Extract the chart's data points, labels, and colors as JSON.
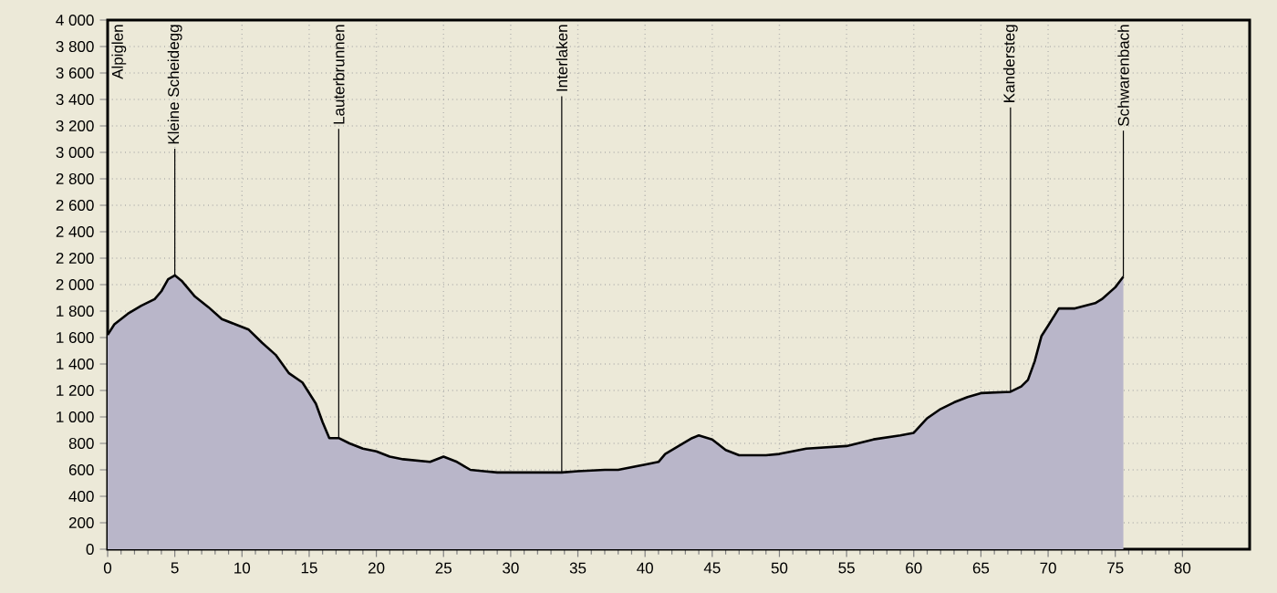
{
  "chart_data": {
    "type": "area",
    "color": "#b9b6c9",
    "x": [
      0,
      0.5,
      1.5,
      2.5,
      3.5,
      4,
      4.5,
      5,
      5.5,
      6.5,
      7.5,
      8.5,
      9.5,
      10.5,
      11.5,
      12.5,
      13.5,
      14.5,
      15.5,
      16,
      16.5,
      17.2,
      18,
      19,
      20,
      21,
      22,
      24,
      25,
      26,
      27,
      28,
      29,
      33.8,
      35,
      37,
      38,
      40,
      41,
      41.5,
      42.5,
      43.5,
      44,
      45,
      46,
      47,
      49,
      50,
      52,
      55,
      57,
      59,
      60,
      61,
      62,
      63,
      64,
      65,
      67.2,
      68,
      68.5,
      69,
      69.5,
      70,
      70.8,
      72,
      73.5,
      74,
      75,
      75.6
    ],
    "values": [
      1620,
      1700,
      1780,
      1840,
      1890,
      1950,
      2040,
      2070,
      2030,
      1910,
      1830,
      1740,
      1700,
      1660,
      1560,
      1470,
      1330,
      1260,
      1100,
      960,
      840,
      840,
      800,
      760,
      740,
      700,
      680,
      660,
      700,
      660,
      600,
      590,
      580,
      580,
      590,
      600,
      600,
      640,
      660,
      720,
      780,
      840,
      860,
      830,
      750,
      710,
      710,
      720,
      760,
      780,
      830,
      860,
      880,
      990,
      1060,
      1110,
      1150,
      1180,
      1190,
      1230,
      1280,
      1420,
      1610,
      1690,
      1820,
      1820,
      1860,
      1890,
      1980,
      2060
    ],
    "xlim": [
      0,
      85
    ],
    "ylim": [
      0,
      4000
    ],
    "xticks": [
      0,
      5,
      10,
      15,
      20,
      25,
      30,
      35,
      40,
      45,
      50,
      55,
      60,
      65,
      70,
      75,
      80
    ],
    "yticks": [
      {
        "value": 0,
        "label": "0"
      },
      {
        "value": 200,
        "label": "200"
      },
      {
        "value": 400,
        "label": "400"
      },
      {
        "value": 600,
        "label": "600"
      },
      {
        "value": 800,
        "label": "800"
      },
      {
        "value": 1000,
        "label": "1 000"
      },
      {
        "value": 1200,
        "label": "1 200"
      },
      {
        "value": 1400,
        "label": "1 400"
      },
      {
        "value": 1600,
        "label": "1 600"
      },
      {
        "value": 1800,
        "label": "1 800"
      },
      {
        "value": 2000,
        "label": "2 000"
      },
      {
        "value": 2200,
        "label": "2 200"
      },
      {
        "value": 2400,
        "label": "2 400"
      },
      {
        "value": 2600,
        "label": "2 600"
      },
      {
        "value": 2800,
        "label": "2 800"
      },
      {
        "value": 3000,
        "label": "3 000"
      },
      {
        "value": 3200,
        "label": "3 200"
      },
      {
        "value": 3400,
        "label": "3 400"
      },
      {
        "value": 3600,
        "label": "3 600"
      },
      {
        "value": 3800,
        "label": "3 800"
      },
      {
        "value": 4000,
        "label": "4 000"
      }
    ],
    "grid": true,
    "annotations": [
      "Alpiglen",
      {
        "text": "Kleine Scheidegg",
        "x": 5,
        "y": 2070
      },
      {
        "text": "Lauterbrunnen",
        "x": 17.2,
        "y": 840
      },
      {
        "text": "Interlaken",
        "x": 33.8,
        "y": 580
      },
      {
        "text": "Kandersteg",
        "x": 67.2,
        "y": 1190
      },
      {
        "text": "Schwarenbach",
        "x": 75.6,
        "y": 2060
      }
    ]
  }
}
